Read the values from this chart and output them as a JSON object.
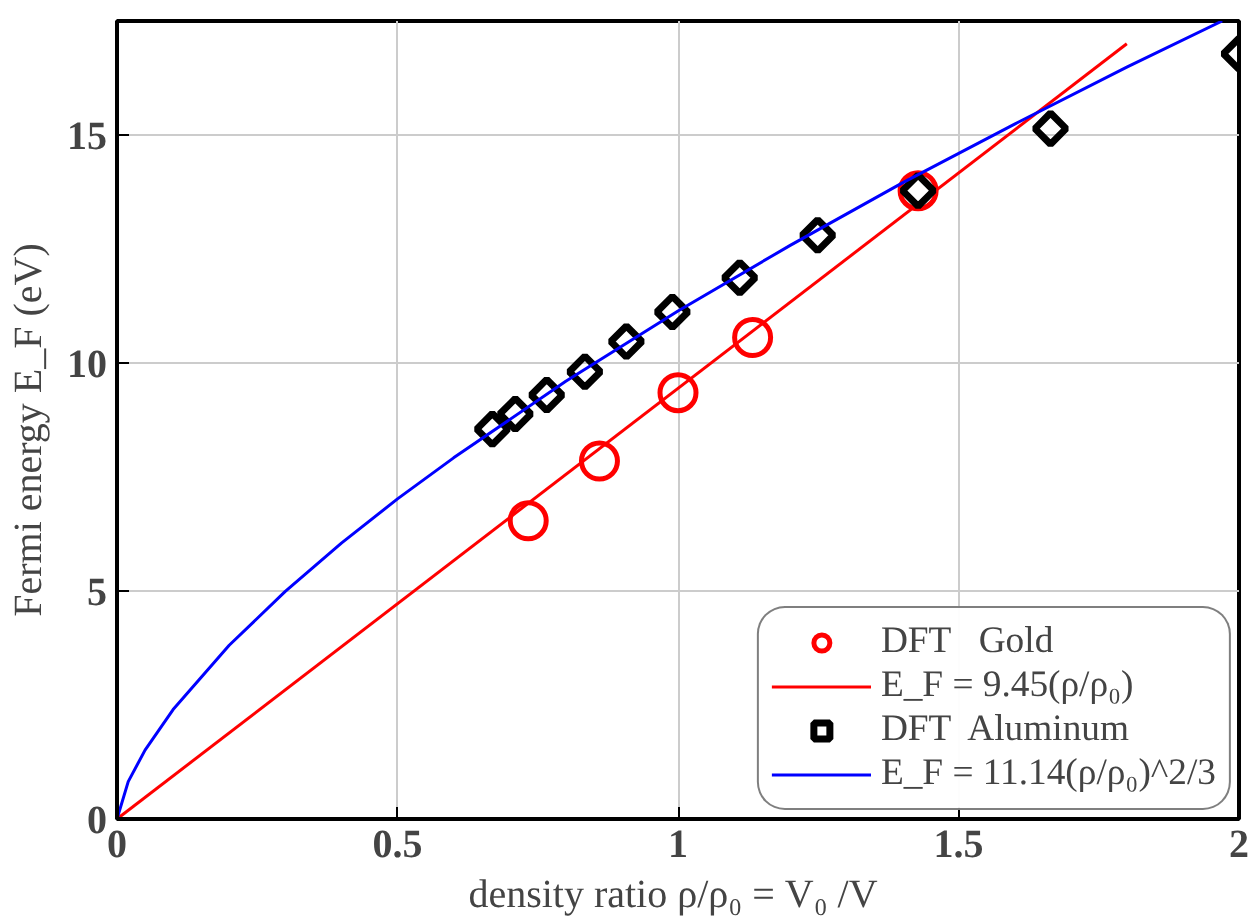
{
  "chart_data": {
    "type": "scatter",
    "xlabel": "density ratio  ρ/ρ₀ = V₀ /V",
    "ylabel": "Fermi energy  E_F  (eV)",
    "xlim": [
      0,
      2
    ],
    "ylim": [
      0,
      17.5
    ],
    "xticks": [
      0,
      0.5,
      1,
      1.5,
      2
    ],
    "yticks": [
      0,
      5,
      10,
      15
    ],
    "grid": true,
    "legend": "bottom right",
    "series": [
      {
        "name": "DFT   Gold",
        "marker": "circle",
        "color": "#ff0000",
        "x": [
          0.733,
          0.86,
          1.0,
          1.133,
          1.428
        ],
        "values": [
          6.54,
          7.85,
          9.35,
          10.56,
          13.78
        ]
      },
      {
        "name": "E_F = 9.45(ρ/ρ₀)",
        "type": "line",
        "color": "#ff0000",
        "x": [
          0,
          1.8
        ],
        "values": [
          0,
          17.0
        ]
      },
      {
        "name": "DFT  Aluminum",
        "marker": "diamond",
        "color": "#000000",
        "x": [
          0.669,
          0.71,
          0.766,
          0.834,
          0.908,
          0.99,
          1.11,
          1.249,
          1.428,
          1.664,
          2.0
        ],
        "values": [
          8.55,
          8.88,
          9.3,
          9.81,
          10.47,
          11.12,
          11.87,
          12.8,
          13.78,
          15.14,
          16.78
        ]
      },
      {
        "name": "E_F = 11.14(ρ/ρ₀)^2/3",
        "type": "line",
        "color": "#0000ff",
        "x": [
          0,
          0.02,
          0.05,
          0.1,
          0.2,
          0.3,
          0.4,
          0.5,
          0.6,
          0.8,
          1.0,
          1.2,
          1.4,
          1.6,
          1.8,
          1.97
        ],
        "values": [
          0,
          0.82,
          1.51,
          2.4,
          3.81,
          4.99,
          6.05,
          7.02,
          7.92,
          9.6,
          11.14,
          12.58,
          13.95,
          15.24,
          16.49,
          17.5
        ]
      }
    ]
  }
}
